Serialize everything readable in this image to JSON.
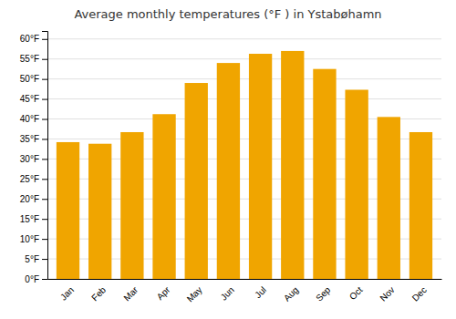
{
  "chart_data": {
    "type": "bar",
    "title": "Average monthly temperatures (°F ) in Ystabøhamn",
    "categories": [
      "Jan",
      "Feb",
      "Mar",
      "Apr",
      "May",
      "Jun",
      "Jul",
      "Aug",
      "Sep",
      "Oct",
      "Nov",
      "Dec"
    ],
    "values": [
      34.2,
      33.8,
      36.7,
      41.2,
      49.0,
      54.0,
      56.3,
      57.0,
      52.5,
      47.3,
      40.5,
      36.7
    ],
    "color": "#F0A500",
    "ylim": [
      0,
      62
    ],
    "yticks": [
      {
        "value": 0,
        "label": "0°F"
      },
      {
        "value": 5,
        "label": "5°F"
      },
      {
        "value": 10,
        "label": "10°F"
      },
      {
        "value": 15,
        "label": "15°F"
      },
      {
        "value": 20,
        "label": "20°F"
      },
      {
        "value": 25,
        "label": "25°F"
      },
      {
        "value": 30,
        "label": "30°F"
      },
      {
        "value": 35,
        "label": "35°F"
      },
      {
        "value": 40,
        "label": "40°F"
      },
      {
        "value": 45,
        "label": "45°F"
      },
      {
        "value": 50,
        "label": "50°F"
      },
      {
        "value": 55,
        "label": "55°F"
      },
      {
        "value": 60,
        "label": "60°F"
      }
    ],
    "grid": true
  }
}
